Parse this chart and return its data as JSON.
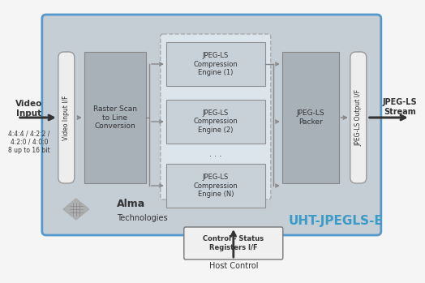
{
  "bg_outer": "#f5f5f5",
  "bg_main": "#c5cdd5",
  "bg_main_border": "#5599cc",
  "bg_engines_dashed": "#dce4ec",
  "block_dark": "#9aa0a6",
  "block_raster": "#a8b0b8",
  "block_engine": "#c8d0d8",
  "block_engine_border": "#909090",
  "block_packer": "#a8b0b8",
  "block_if": "#eeeeee",
  "block_if_border": "#999999",
  "arrow_color": "#333333",
  "arrow_inner": "#888888",
  "text_dark": "#333333",
  "text_white": "#ffffff",
  "text_blue": "#3b9cc8",
  "title_main": "UHT-JPEGLS-E",
  "label_video_input": "Video\nInput",
  "label_video_if": "Video Input I/F",
  "label_raster": "Raster Scan\nto Line\nConversion",
  "label_engine1": "JPEG-LS\nCompression\nEngine (1)",
  "label_engine2": "JPEG-LS\nCompression\nEngine (2)",
  "label_engineN": "JPEG-LS\nCompression\nEngine (N)",
  "label_packer": "JPEG-LS\nPacker",
  "label_output_if": "JPEG-LS Output I/F",
  "label_jpegls_stream": "JPEG-LS\nStream",
  "label_control": "Control - Status\nRegisters I/F",
  "label_host": "Host Control",
  "label_formats": "4:4:4 / 4:2:2 /\n4:2:0 / 4:0:0\n8 up to 16 bit",
  "alma_text_top": "Alma",
  "alma_text_bot": "Technologies"
}
